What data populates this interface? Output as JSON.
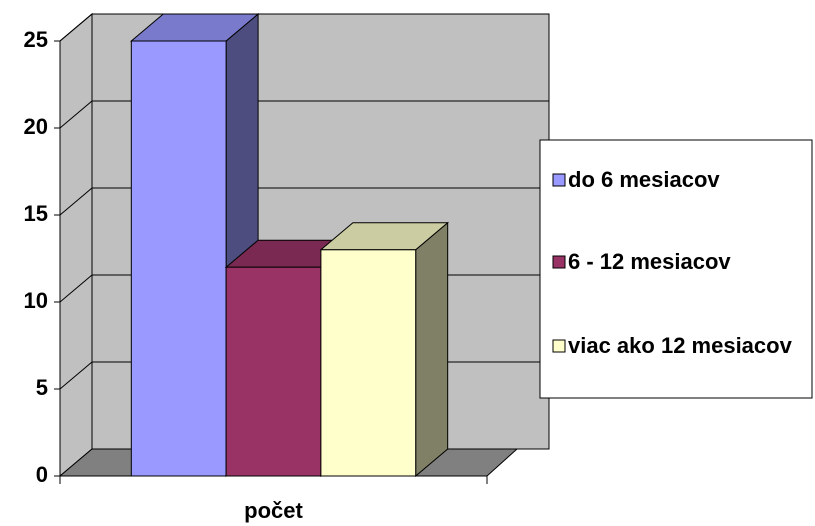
{
  "chart_data": {
    "type": "bar3d",
    "categories": [
      "počet"
    ],
    "series": [
      {
        "name": "do 6 mesiacov",
        "color": "#9999ff",
        "values": [
          25
        ]
      },
      {
        "name": "6 - 12 mesiacov",
        "color": "#993366",
        "values": [
          12
        ]
      },
      {
        "name": "viac ako 12 mesiacov",
        "color": "#ffffcc",
        "values": [
          13
        ]
      }
    ],
    "ylim": [
      0,
      25
    ],
    "yticks": [
      0,
      5,
      10,
      15,
      20,
      25
    ],
    "grid": true,
    "legend": "right"
  }
}
